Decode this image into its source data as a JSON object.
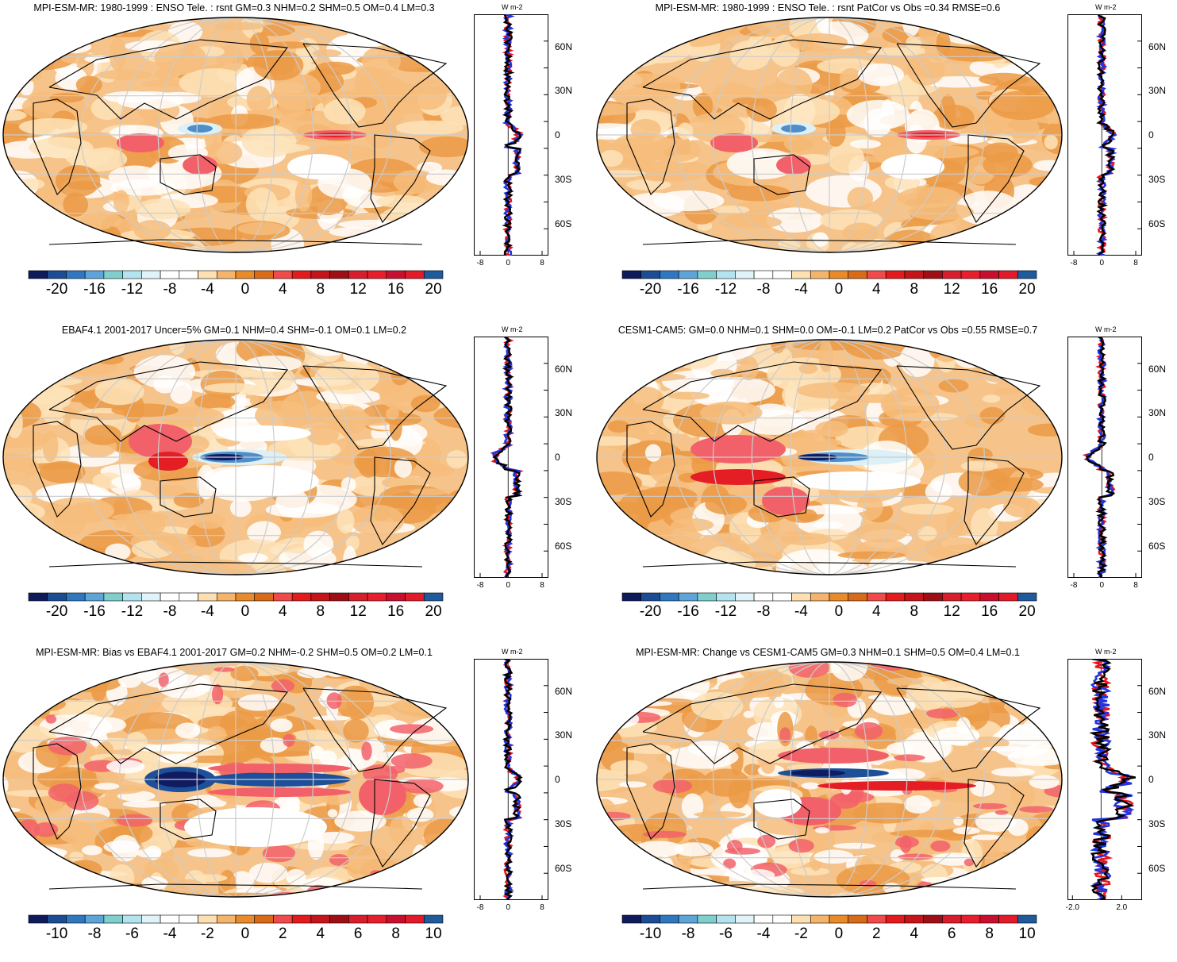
{
  "panels": [
    {
      "title": "MPI-ESM-MR: 1980-1999 : ENSO Tele. : rsnt GM=0.3 NHM=0.2 SHM=0.5 OM=0.4 LM=0.3",
      "colorbar_labels": [
        "-20",
        "-16",
        "-12",
        "-8",
        "-4",
        "0",
        "4",
        "8",
        "12",
        "16",
        "20"
      ],
      "profile_xticks": [
        "-8",
        "0",
        "8"
      ],
      "profile_lat_labels": [
        "60N",
        "30N",
        "0",
        "30S",
        "60S"
      ],
      "profile_unit": "W m-2",
      "map_pattern": "mpi-enso"
    },
    {
      "title": "MPI-ESM-MR: 1980-1999 : ENSO Tele. : rsnt PatCor vs Obs =0.34 RMSE=0.6",
      "colorbar_labels": [
        "-20",
        "-16",
        "-12",
        "-8",
        "-4",
        "0",
        "4",
        "8",
        "12",
        "16",
        "20"
      ],
      "profile_xticks": [
        "-8",
        "0",
        "8"
      ],
      "profile_lat_labels": [
        "60N",
        "30N",
        "0",
        "30S",
        "60S"
      ],
      "profile_unit": "W m-2",
      "map_pattern": "mpi-enso"
    },
    {
      "title": "EBAF4.1 2001-2017 Uncer=5% GM=0.1 NHM=0.4 SHM=-0.1 OM=0.1 LM=0.2",
      "colorbar_labels": [
        "-20",
        "-16",
        "-12",
        "-8",
        "-4",
        "0",
        "4",
        "8",
        "12",
        "16",
        "20"
      ],
      "profile_xticks": [
        "-8",
        "0",
        "8"
      ],
      "profile_lat_labels": [
        "60N",
        "30N",
        "0",
        "30S",
        "60S"
      ],
      "profile_unit": "W m-2",
      "map_pattern": "obs"
    },
    {
      "title": "CESM1-CAM5: GM=0.0 NHM=0.1 SHM=0.0 OM=-0.1 LM=0.2 PatCor vs Obs =0.55 RMSE=0.7",
      "colorbar_labels": [
        "-20",
        "-16",
        "-12",
        "-8",
        "-4",
        "0",
        "4",
        "8",
        "12",
        "16",
        "20"
      ],
      "profile_xticks": [
        "-8",
        "0",
        "8"
      ],
      "profile_lat_labels": [
        "60N",
        "30N",
        "0",
        "30S",
        "60S"
      ],
      "profile_unit": "W m-2",
      "map_pattern": "cesm"
    },
    {
      "title": "MPI-ESM-MR: Bias vs EBAF4.1 2001-2017 GM=0.2 NHM=-0.2 SHM=0.5 OM=0.2 LM=0.1",
      "colorbar_labels": [
        "-10",
        "-8",
        "-6",
        "-4",
        "-2",
        "0",
        "2",
        "4",
        "6",
        "8",
        "10"
      ],
      "profile_xticks": [
        "-8",
        "0",
        "8"
      ],
      "profile_lat_labels": [
        "60N",
        "30N",
        "0",
        "30S",
        "60S"
      ],
      "profile_unit": "W m-2",
      "map_pattern": "bias"
    },
    {
      "title": "MPI-ESM-MR: Change vs CESM1-CAM5 GM=0.3 NHM=0.1 SHM=0.5 OM=0.4 LM=0.1",
      "colorbar_labels": [
        "-10",
        "-8",
        "-6",
        "-4",
        "-2",
        "0",
        "2",
        "4",
        "6",
        "8",
        "10"
      ],
      "profile_xticks": [
        "-2.0",
        "2.0"
      ],
      "profile_lat_labels": [
        "60N",
        "30N",
        "0",
        "30S",
        "60S"
      ],
      "profile_unit": "W m-2",
      "map_pattern": "change"
    }
  ],
  "colors": {
    "colorbar": [
      "#0d1a5c",
      "#1b4c94",
      "#2f78c0",
      "#5fa4d8",
      "#7fcfcf",
      "#b3e3ee",
      "#dff3f8",
      "#ffffff",
      "#ffffff",
      "#fde0b2",
      "#f4b46c",
      "#e98b2a",
      "#d96a17",
      "#f04a4a",
      "#e41a1c",
      "#c5141a",
      "#9d0f14",
      "#d81e2c",
      "#e81e2c",
      "#c8102e",
      "#e21a2a",
      "#1f5a9a"
    ],
    "profile_red": "#e8141c",
    "profile_blue": "#1f33e0",
    "profile_black": "#000000",
    "coast": "#000000",
    "grid": "#cccccc"
  }
}
